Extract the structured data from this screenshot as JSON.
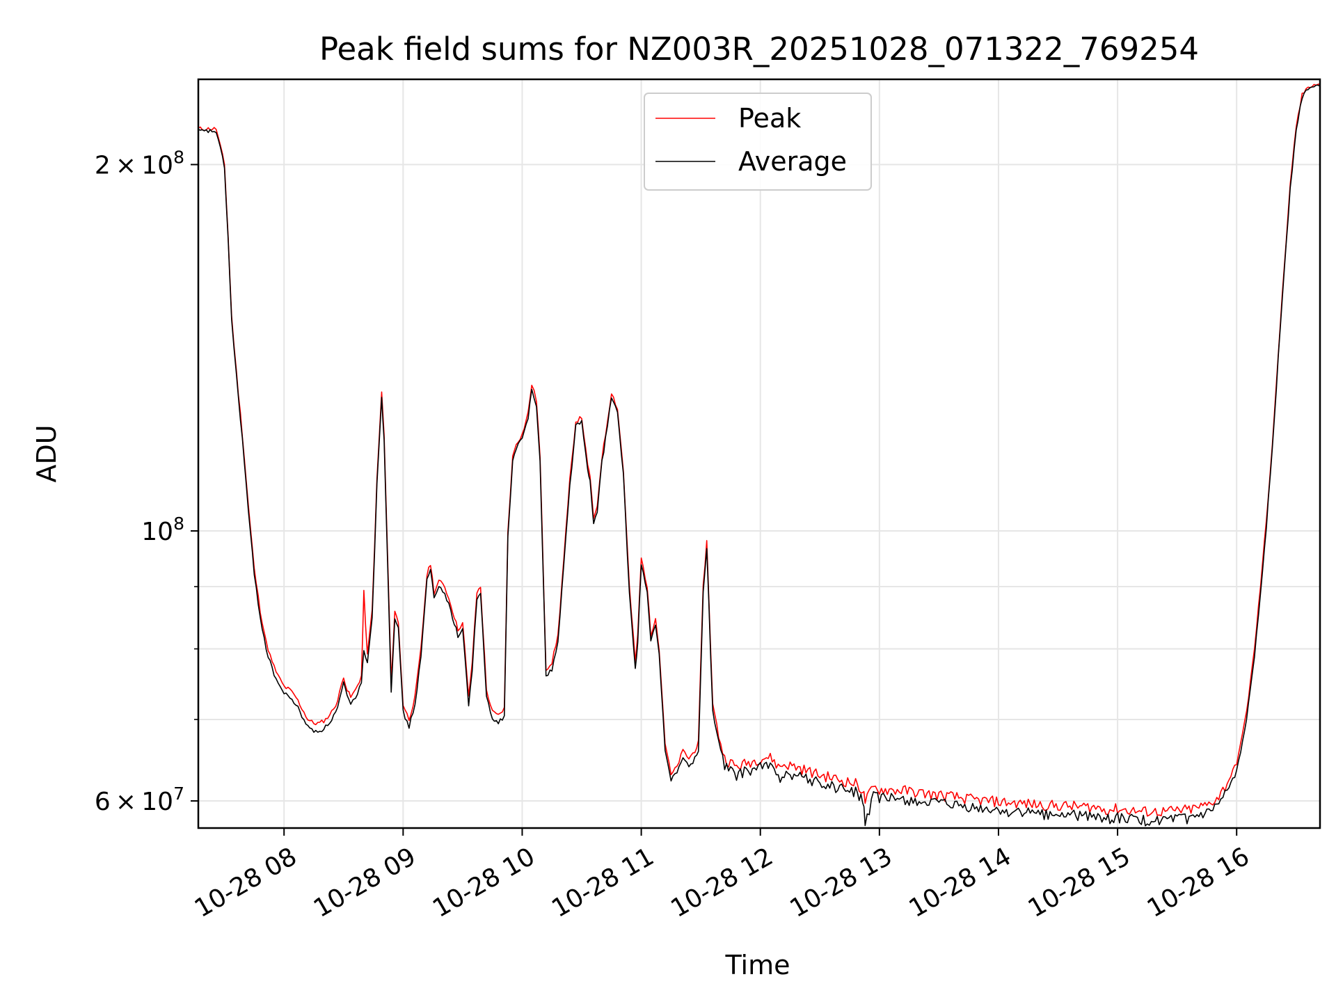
{
  "chart_data": {
    "type": "line",
    "title": "Peak field sums for NZ003R_20251028_071322_769254",
    "xlabel": "Time",
    "ylabel": "ADU",
    "yscale": "log",
    "xlim_hours": [
      7.28,
      16.7
    ],
    "ylim": [
      57000000,
      235000000
    ],
    "grid": true,
    "legend_location": "upper center",
    "x_tick_values_hours": [
      8,
      9,
      10,
      11,
      12,
      13,
      14,
      15,
      16
    ],
    "x_tick_labels": [
      "10-28 08",
      "10-28 09",
      "10-28 10",
      "10-28 11",
      "10-28 12",
      "10-28 13",
      "10-28 14",
      "10-28 15",
      "10-28 16"
    ],
    "y_major_ticks": [
      {
        "value": 60000000,
        "mantissa": "6",
        "exponent": "7"
      },
      {
        "value": 100000000,
        "mantissa": "",
        "exponent": "8"
      },
      {
        "value": 200000000,
        "mantissa": "2",
        "exponent": "8"
      }
    ],
    "y_minor_ticks": [
      70000000,
      80000000,
      90000000
    ],
    "series": [
      {
        "name": "Peak",
        "color": "#ff0000",
        "x_hours": [
          7.28,
          7.43,
          7.5,
          7.53,
          7.56,
          7.6,
          7.65,
          7.7,
          7.75,
          7.8,
          7.85,
          7.9,
          7.95,
          8.0,
          8.05,
          8.1,
          8.15,
          8.2,
          8.25,
          8.3,
          8.35,
          8.4,
          8.45,
          8.5,
          8.53,
          8.56,
          8.6,
          8.65,
          8.67,
          8.7,
          8.74,
          8.78,
          8.82,
          8.84,
          8.87,
          8.9,
          8.93,
          8.96,
          9.0,
          9.05,
          9.1,
          9.15,
          9.2,
          9.23,
          9.26,
          9.3,
          9.35,
          9.4,
          9.43,
          9.46,
          9.5,
          9.55,
          9.58,
          9.62,
          9.65,
          9.7,
          9.75,
          9.8,
          9.85,
          9.88,
          9.92,
          9.95,
          10.0,
          10.05,
          10.08,
          10.12,
          10.15,
          10.2,
          10.25,
          10.3,
          10.35,
          10.4,
          10.45,
          10.5,
          10.55,
          10.57,
          10.6,
          10.63,
          10.67,
          10.7,
          10.75,
          10.8,
          10.85,
          10.9,
          10.95,
          10.97,
          11.0,
          11.05,
          11.08,
          11.12,
          11.15,
          11.2,
          11.25,
          11.3,
          11.35,
          11.4,
          11.45,
          11.48,
          11.52,
          11.55,
          11.6,
          11.65,
          11.7,
          11.8,
          11.9,
          12.0,
          12.05,
          12.1,
          12.15,
          12.2,
          12.3,
          12.4,
          12.5,
          12.6,
          12.7,
          12.8,
          12.86,
          12.88,
          12.95,
          13.0,
          13.2,
          13.4,
          13.6,
          13.8,
          14.0,
          14.2,
          14.4,
          14.6,
          14.8,
          14.92,
          15.0,
          15.2,
          15.4,
          15.6,
          15.75,
          15.85,
          15.92,
          16.0,
          16.05,
          16.1,
          16.15,
          16.2,
          16.25,
          16.3,
          16.35,
          16.4,
          16.45,
          16.5,
          16.55,
          16.6,
          16.7
        ],
        "values": [
          214000000,
          214000000,
          200000000,
          175000000,
          150000000,
          135000000,
          120000000,
          105000000,
          93000000,
          86000000,
          81000000,
          78000000,
          76000000,
          74500000,
          74000000,
          73000000,
          71500000,
          70000000,
          69500000,
          69500000,
          70000000,
          71000000,
          72500000,
          76000000,
          74000000,
          73000000,
          74000000,
          76000000,
          89000000,
          79000000,
          86000000,
          110000000,
          130000000,
          120000000,
          95000000,
          75000000,
          86000000,
          84000000,
          72000000,
          70000000,
          73000000,
          80000000,
          92000000,
          94000000,
          89000000,
          91000000,
          90000000,
          87000000,
          85000000,
          83000000,
          84000000,
          73000000,
          78000000,
          89000000,
          90000000,
          74000000,
          71000000,
          70500000,
          71500000,
          100000000,
          115000000,
          118000000,
          120000000,
          125000000,
          132000000,
          128000000,
          115000000,
          77000000,
          78000000,
          82000000,
          95000000,
          110000000,
          123000000,
          124000000,
          113000000,
          111000000,
          102000000,
          105000000,
          115000000,
          120000000,
          130000000,
          126000000,
          112000000,
          90000000,
          78000000,
          82000000,
          95000000,
          90000000,
          82000000,
          85000000,
          80000000,
          67000000,
          63000000,
          64000000,
          66000000,
          65000000,
          66000000,
          67000000,
          90000000,
          98000000,
          72000000,
          68000000,
          65000000,
          64000000,
          64500000,
          65000000,
          65200000,
          65000000,
          64000000,
          64300000,
          64000000,
          63500000,
          63000000,
          62700000,
          62300000,
          62000000,
          61200000,
          60000000,
          61500000,
          61300000,
          61200000,
          60800000,
          60500000,
          60100000,
          59900000,
          59700000,
          59500000,
          59400000,
          59300000,
          59000000,
          59100000,
          58800000,
          58800000,
          59000000,
          59500000,
          60500000,
          62000000,
          64500000,
          68000000,
          73000000,
          80000000,
          90000000,
          102000000,
          118000000,
          140000000,
          165000000,
          192000000,
          215000000,
          228000000,
          232000000,
          233000000
        ]
      },
      {
        "name": "Average",
        "color": "#000000",
        "x_hours": [
          7.28,
          7.43,
          7.5,
          7.53,
          7.56,
          7.6,
          7.65,
          7.7,
          7.75,
          7.8,
          7.85,
          7.9,
          7.95,
          8.0,
          8.05,
          8.1,
          8.15,
          8.2,
          8.25,
          8.3,
          8.35,
          8.4,
          8.45,
          8.5,
          8.53,
          8.56,
          8.6,
          8.65,
          8.67,
          8.7,
          8.74,
          8.78,
          8.82,
          8.84,
          8.87,
          8.9,
          8.93,
          8.96,
          9.0,
          9.05,
          9.1,
          9.15,
          9.2,
          9.23,
          9.26,
          9.3,
          9.35,
          9.4,
          9.43,
          9.46,
          9.5,
          9.55,
          9.58,
          9.62,
          9.65,
          9.7,
          9.75,
          9.8,
          9.85,
          9.88,
          9.92,
          9.95,
          10.0,
          10.05,
          10.08,
          10.12,
          10.15,
          10.2,
          10.25,
          10.3,
          10.35,
          10.4,
          10.45,
          10.5,
          10.55,
          10.57,
          10.6,
          10.63,
          10.67,
          10.7,
          10.75,
          10.8,
          10.85,
          10.9,
          10.95,
          10.97,
          11.0,
          11.05,
          11.08,
          11.12,
          11.15,
          11.2,
          11.25,
          11.3,
          11.35,
          11.4,
          11.45,
          11.48,
          11.52,
          11.55,
          11.6,
          11.65,
          11.7,
          11.8,
          11.9,
          12.0,
          12.05,
          12.1,
          12.15,
          12.2,
          12.3,
          12.4,
          12.5,
          12.6,
          12.7,
          12.8,
          12.86,
          12.88,
          12.95,
          13.0,
          13.2,
          13.4,
          13.6,
          13.8,
          14.0,
          14.2,
          14.4,
          14.6,
          14.8,
          14.92,
          15.0,
          15.2,
          15.4,
          15.6,
          15.75,
          15.85,
          15.92,
          16.0,
          16.05,
          16.1,
          16.15,
          16.2,
          16.25,
          16.3,
          16.35,
          16.4,
          16.45,
          16.5,
          16.55,
          16.6,
          16.7
        ],
        "values": [
          213000000,
          213000000,
          199000000,
          174000000,
          149000000,
          134000000,
          119000000,
          104000000,
          92000000,
          85000000,
          80000000,
          77000000,
          75000000,
          73500000,
          73000000,
          72000000,
          70500000,
          69000000,
          68500000,
          68500000,
          69000000,
          70000000,
          71500000,
          75000000,
          73000000,
          72000000,
          73000000,
          75000000,
          80000000,
          78000000,
          85000000,
          109000000,
          129000000,
          119000000,
          94000000,
          74000000,
          85000000,
          83000000,
          71000000,
          69000000,
          72000000,
          79000000,
          91000000,
          93000000,
          88000000,
          90000000,
          89000000,
          86000000,
          84000000,
          82000000,
          83000000,
          72000000,
          77000000,
          88000000,
          89000000,
          73000000,
          70000000,
          69500000,
          70500000,
          99000000,
          114000000,
          117000000,
          119000000,
          124000000,
          131000000,
          127000000,
          114000000,
          76000000,
          77000000,
          81000000,
          94000000,
          109000000,
          122000000,
          123000000,
          112000000,
          110000000,
          101000000,
          104000000,
          114000000,
          119000000,
          129000000,
          125000000,
          111000000,
          89000000,
          77000000,
          81000000,
          94000000,
          89000000,
          81000000,
          84000000,
          79000000,
          66000000,
          62500000,
          63500000,
          65000000,
          64000000,
          65000000,
          66000000,
          89000000,
          97000000,
          71000000,
          67000000,
          64000000,
          63000000,
          63500000,
          64000000,
          64200000,
          64000000,
          62500000,
          63300000,
          63000000,
          62500000,
          62000000,
          61700000,
          61300000,
          61000000,
          60200000,
          57500000,
          60500000,
          60300000,
          60200000,
          59800000,
          59500000,
          59100000,
          58900000,
          58700000,
          58500000,
          58400000,
          58300000,
          58000000,
          58100000,
          57800000,
          57800000,
          58000000,
          58500000,
          59500000,
          61000000,
          63500000,
          67000000,
          72000000,
          79000000,
          89000000,
          101000000,
          117000000,
          139000000,
          164000000,
          191000000,
          214000000,
          227000000,
          231000000,
          232000000
        ]
      }
    ]
  }
}
